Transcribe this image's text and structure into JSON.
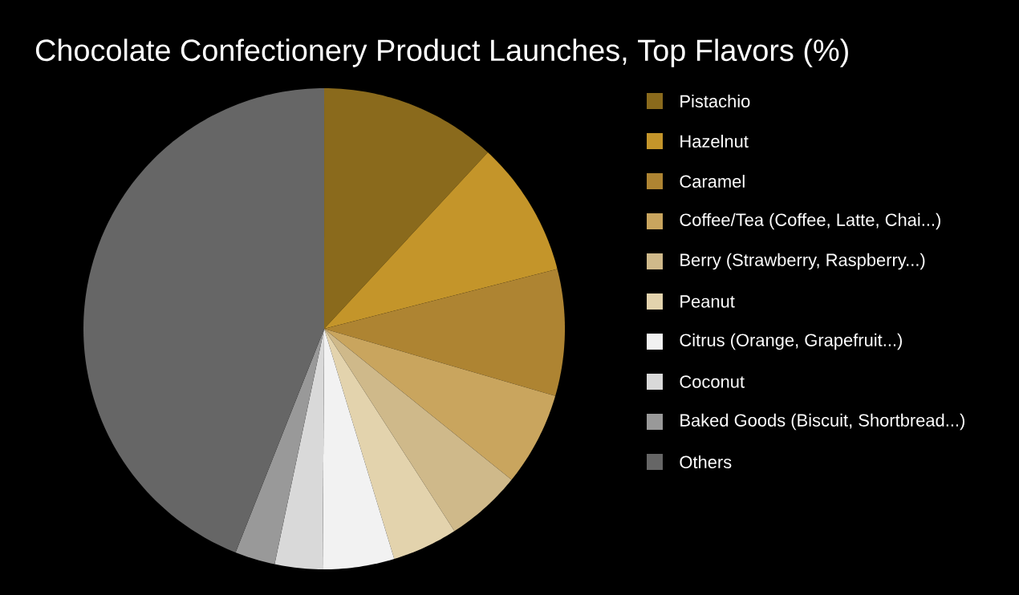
{
  "chart_data": {
    "type": "pie",
    "title": "Chocolate Confectionery Product Launches, Top Flavors (%)",
    "categories": [
      "Pistachio",
      "Hazelnut",
      "Caramel",
      "Coffee/Tea (Coffee, Latte, Chai...)",
      "Berry (Strawberry, Raspberry...)",
      "Peanut",
      "Citrus (Orange, Grapefruit...)",
      "Coconut",
      "Baked Goods (Biscuit, Shortbread...)",
      "Others"
    ],
    "values": [
      11.9,
      9.1,
      8.5,
      6.3,
      5.1,
      4.4,
      4.8,
      3.2,
      2.7,
      44.0
    ],
    "colors": [
      "#8a6a1c",
      "#c4952a",
      "#ae8432",
      "#c9a55e",
      "#cfb98a",
      "#e3d3ad",
      "#f2f2f2",
      "#d9d9d9",
      "#999999",
      "#666666"
    ],
    "legend": "right"
  }
}
